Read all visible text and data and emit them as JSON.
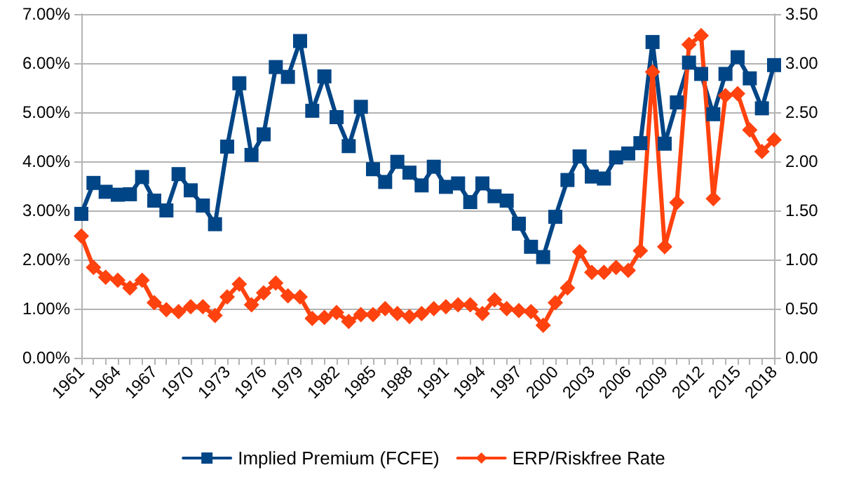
{
  "chart_data": {
    "type": "line",
    "categories": [
      "1961",
      null,
      null,
      "1964",
      null,
      null,
      "1967",
      null,
      null,
      "1970",
      null,
      null,
      "1973",
      null,
      null,
      "1976",
      null,
      null,
      "1979",
      null,
      null,
      "1982",
      null,
      null,
      "1985",
      null,
      null,
      "1988",
      null,
      null,
      "1991",
      null,
      null,
      "1994",
      null,
      null,
      "1997",
      null,
      null,
      "2000",
      null,
      null,
      "2003",
      null,
      null,
      "2006",
      null,
      null,
      "2009",
      null,
      null,
      "2012",
      null,
      null,
      "2015",
      null,
      null,
      "2018"
    ],
    "series": [
      {
        "name": "Implied Premium (FCFE)",
        "color": "#004586",
        "marker": "square",
        "values": [
          2.93,
          3.56,
          3.38,
          3.32,
          3.33,
          3.68,
          3.2,
          3.0,
          3.74,
          3.41,
          3.1,
          2.72,
          4.3,
          5.59,
          4.13,
          4.55,
          5.92,
          5.72,
          6.45,
          5.03,
          5.73,
          4.9,
          4.31,
          5.11,
          3.84,
          3.58,
          3.99,
          3.77,
          3.51,
          3.89,
          3.48,
          3.55,
          3.17,
          3.55,
          3.29,
          3.2,
          2.73,
          2.26,
          2.05,
          2.87,
          3.62,
          4.1,
          3.69,
          3.65,
          4.08,
          4.16,
          4.37,
          6.43,
          4.36,
          5.2,
          6.01,
          5.78,
          4.96,
          5.78,
          6.12,
          5.69,
          5.08,
          5.96
        ]
      },
      {
        "name": "ERP/Riskfree Rate",
        "color": "#ff420e",
        "marker": "diamond",
        "axis": "y2",
        "values": [
          1.24,
          0.92,
          0.82,
          0.79,
          0.71,
          0.79,
          0.56,
          0.49,
          0.47,
          0.52,
          0.52,
          0.43,
          0.62,
          0.75,
          0.54,
          0.66,
          0.76,
          0.63,
          0.62,
          0.4,
          0.41,
          0.46,
          0.37,
          0.44,
          0.44,
          0.5,
          0.45,
          0.42,
          0.45,
          0.5,
          0.52,
          0.54,
          0.54,
          0.45,
          0.59,
          0.5,
          0.48,
          0.47,
          0.33,
          0.56,
          0.71,
          1.08,
          0.87,
          0.87,
          0.92,
          0.89,
          1.09,
          2.91,
          1.13,
          1.58,
          3.19,
          3.28,
          1.62,
          2.67,
          2.69,
          2.32,
          2.1,
          2.22
        ]
      }
    ],
    "ylim": [
      0,
      7
    ],
    "yticks": [
      {
        "value": 0,
        "label": "0.00%"
      },
      {
        "value": 1,
        "label": "1.00%"
      },
      {
        "value": 2,
        "label": "2.00%"
      },
      {
        "value": 3,
        "label": "3.00%"
      },
      {
        "value": 4,
        "label": "4.00%"
      },
      {
        "value": 5,
        "label": "5.00%"
      },
      {
        "value": 6,
        "label": "6.00%"
      },
      {
        "value": 7,
        "label": "7.00%"
      }
    ],
    "y2lim": [
      0,
      3.5
    ],
    "y2ticks": [
      {
        "value": 0,
        "label": "0.00"
      },
      {
        "value": 0.5,
        "label": "0.50"
      },
      {
        "value": 1,
        "label": "1.00"
      },
      {
        "value": 1.5,
        "label": "1.50"
      },
      {
        "value": 2,
        "label": "2.00"
      },
      {
        "value": 2.5,
        "label": "2.50"
      },
      {
        "value": 3,
        "label": "3.00"
      },
      {
        "value": 3.5,
        "label": "3.50"
      }
    ],
    "grid": "y",
    "legend": "bottom",
    "line_style": "solid"
  }
}
